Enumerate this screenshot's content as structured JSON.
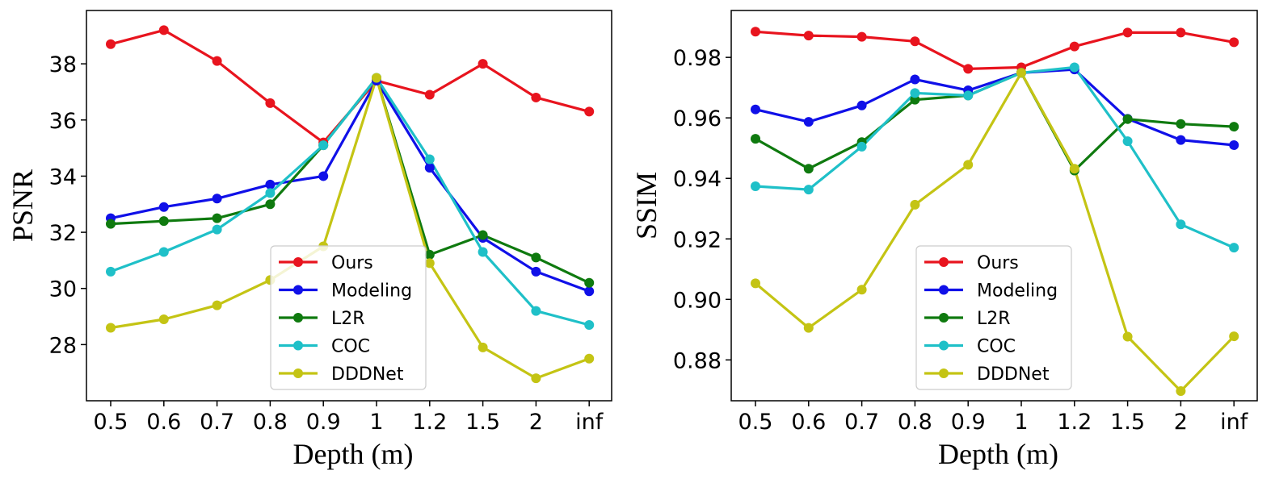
{
  "chart_data": [
    {
      "type": "line",
      "title": "",
      "xlabel": "Depth (m)",
      "ylabel": "PSNR",
      "categories": [
        "0.5",
        "0.6",
        "0.7",
        "0.8",
        "0.9",
        "1",
        "1.2",
        "1.5",
        "2",
        "inf"
      ],
      "yticks": [
        "28",
        "30",
        "32",
        "34",
        "36",
        "38"
      ],
      "ylim": [
        26.0,
        39.9
      ],
      "legend_position": "lower-center",
      "series": [
        {
          "name": "Ours",
          "color": "#e8141e",
          "values": [
            38.7,
            39.2,
            38.1,
            36.6,
            35.2,
            37.4,
            36.9,
            38.0,
            36.8,
            36.3
          ]
        },
        {
          "name": "Modeling",
          "color": "#1010e8",
          "values": [
            32.5,
            32.9,
            33.2,
            33.7,
            34.0,
            37.4,
            34.3,
            31.8,
            30.6,
            29.9
          ]
        },
        {
          "name": "L2R",
          "color": "#0f7a0f",
          "values": [
            32.3,
            32.4,
            32.5,
            33.0,
            35.1,
            37.5,
            31.2,
            31.9,
            31.1,
            30.2
          ]
        },
        {
          "name": "COC",
          "color": "#1fc0c8",
          "values": [
            30.6,
            31.3,
            32.1,
            33.4,
            35.1,
            37.5,
            34.6,
            31.3,
            29.2,
            28.7
          ]
        },
        {
          "name": "DDDNet",
          "color": "#c4c414",
          "values": [
            28.6,
            28.9,
            29.4,
            30.3,
            31.5,
            37.5,
            30.9,
            27.9,
            26.8,
            27.5
          ]
        }
      ]
    },
    {
      "type": "line",
      "title": "",
      "xlabel": "Depth (m)",
      "ylabel": "SSIM",
      "categories": [
        "0.5",
        "0.6",
        "0.7",
        "0.8",
        "0.9",
        "1",
        "1.2",
        "1.5",
        "2",
        "inf"
      ],
      "yticks": [
        "0.88",
        "0.90",
        "0.92",
        "0.94",
        "0.96",
        "0.98"
      ],
      "ylim": [
        0.8665,
        0.9955
      ],
      "legend_position": "lower-center",
      "series": [
        {
          "name": "Ours",
          "color": "#e8141e",
          "values": [
            0.9885,
            0.9872,
            0.9868,
            0.9853,
            0.9762,
            0.9767,
            0.9836,
            0.9882,
            0.9882,
            0.985
          ]
        },
        {
          "name": "Modeling",
          "color": "#1010e8",
          "values": [
            0.9628,
            0.9587,
            0.9641,
            0.9727,
            0.9691,
            0.9749,
            0.976,
            0.9597,
            0.9527,
            0.951
          ]
        },
        {
          "name": "L2R",
          "color": "#0f7a0f",
          "values": [
            0.9531,
            0.9432,
            0.952,
            0.966,
            0.9674,
            0.9749,
            0.9426,
            0.9596,
            0.958,
            0.9571
          ]
        },
        {
          "name": "COC",
          "color": "#1fc0c8",
          "values": [
            0.9374,
            0.9363,
            0.9505,
            0.9682,
            0.9674,
            0.9749,
            0.9767,
            0.9523,
            0.9248,
            0.9171
          ]
        },
        {
          "name": "DDDNet",
          "color": "#c4c414",
          "values": [
            0.9053,
            0.8906,
            0.9032,
            0.9313,
            0.9445,
            0.9749,
            0.9432,
            0.8877,
            0.8697,
            0.8878
          ]
        }
      ]
    }
  ]
}
